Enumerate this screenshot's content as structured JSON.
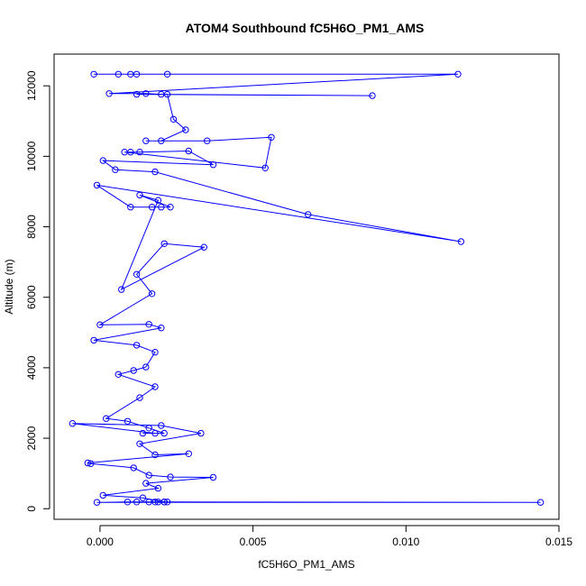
{
  "chart_data": {
    "type": "scatter",
    "title": "ATOM4 Southbound fC5H6O_PM1_AMS",
    "xlabel": "fC5H6O_PM1_AMS",
    "ylabel": "Altitude (m)",
    "xlim": [
      -0.0015,
      0.015
    ],
    "ylim": [
      -300,
      12900
    ],
    "xticks": [
      0.0,
      0.005,
      0.01,
      0.015
    ],
    "xtick_labels": [
      "0.000",
      "0.005",
      "0.010",
      "0.015"
    ],
    "yticks": [
      0,
      2000,
      4000,
      6000,
      8000,
      10000,
      12000
    ],
    "ytick_labels": [
      "0",
      "2000",
      "4000",
      "6000",
      "8000",
      "10000",
      "12000"
    ],
    "grid": false,
    "legend": "none",
    "color": "#0000ff",
    "series": [
      {
        "x": [
          -0.0002,
          0.0006,
          0.001,
          0.0012,
          0.0022,
          0.0117,
          0.0003,
          0.0015,
          0.002,
          0.0089,
          0.0012,
          0.0022,
          0.0024,
          0.0028,
          0.002,
          0.0015,
          0.0035,
          0.0056,
          0.0054,
          0.0008,
          0.001,
          0.0013,
          0.0029,
          0.0037,
          0.0001,
          0.0005,
          0.0018,
          0.0068,
          0.0118,
          -0.0001,
          0.001,
          0.0017,
          0.002,
          0.0023,
          0.0013,
          0.0019,
          0.0007,
          0.0034,
          0.0021,
          0.0012,
          0.0017,
          0.0,
          0.0016,
          0.002,
          -0.0002,
          0.0012,
          0.0018,
          0.0015,
          0.0011,
          0.0006,
          0.0018,
          0.0013,
          0.0002,
          0.0009,
          0.0016,
          0.0021,
          0.0014,
          0.0018,
          -0.0009,
          0.002,
          0.0033,
          0.0013,
          0.0018,
          0.0029,
          -0.0004,
          -0.0003,
          0.0011,
          0.0016,
          0.0023,
          0.0037,
          0.0015,
          0.0019,
          0.0001,
          0.0014,
          0.0021,
          0.0012,
          0.0018,
          0.0016,
          0.0019,
          0.0022,
          0.0144,
          -0.0001,
          0.0009,
          0.0021
        ],
        "y": [
          12330,
          12330,
          12330,
          12330,
          12330,
          12330,
          11780,
          11780,
          11760,
          11720,
          11760,
          11760,
          11050,
          10750,
          10440,
          10440,
          10440,
          10540,
          9670,
          10120,
          10120,
          10120,
          10150,
          9760,
          9880,
          9620,
          9560,
          8350,
          7580,
          9180,
          8560,
          8560,
          8560,
          8560,
          8900,
          8750,
          6220,
          7420,
          7520,
          6650,
          6100,
          5220,
          5230,
          5130,
          4780,
          4640,
          4440,
          4020,
          3920,
          3810,
          3460,
          3150,
          2560,
          2480,
          2290,
          2140,
          2140,
          2140,
          2420,
          2360,
          2140,
          1840,
          1530,
          1560,
          1300,
          1280,
          1160,
          950,
          900,
          890,
          720,
          580,
          380,
          310,
          190,
          190,
          190,
          190,
          190,
          190,
          180,
          180,
          190,
          190
        ]
      }
    ]
  }
}
